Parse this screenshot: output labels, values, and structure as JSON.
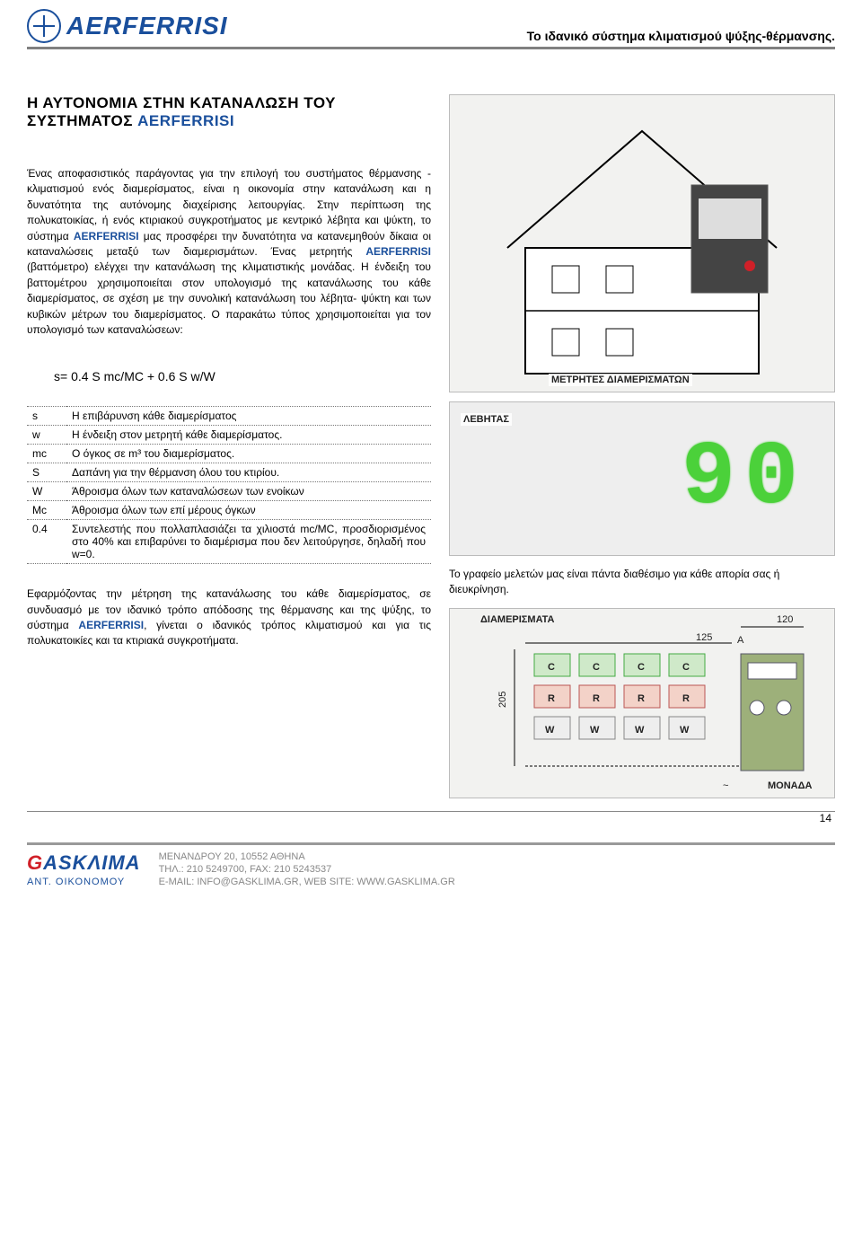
{
  "colors": {
    "brand_blue": "#1a4f9c",
    "brand_red": "#d02028",
    "led_green": "#4bd13a",
    "rule_gray": "#808080",
    "text": "#000000"
  },
  "header": {
    "logo_text": "AERFERRISI",
    "subtitle": "Το ιδανικό σύστημα κλιματισμού ψύξης-θέρμανσης."
  },
  "title_plain": "Η ΑΥΤΟΝΟΜΙΑ ΣΤΗΝ ΚΑΤΑΝΑΛΩΣΗ ΤΟΥ ΣΥΣΤΗΜΑΤΟΣ ",
  "title_brand": "AERFERRISI",
  "para1_a": "Ένας αποφασιστικός παράγοντας για την επιλογή του συστήματος θέρμανσης - κλιματισμού ενός διαμερίσματος, είναι η οικονομία στην κατανάλωση και η δυνατότητα της αυτόνομης διαχείρισης λειτουργίας.\nΣτην περίπτωση της πολυκατοικίας, ή ενός κτιριακού συγκροτήματος με κεντρικό λέβητα και ψύκτη, το σύστημα ",
  "para1_b": " μας προσφέρει την δυνατότητα να κατανεμηθούν δίκαια οι καταναλώσεις μεταξύ των διαμερισμάτων.\nΈνας μετρητής ",
  "para1_c": " (βαττόμετρο) ελέγχει την κατανάλωση της κλιματιστικής μονάδας. Η ένδειξη του βαττομέτρου χρησιμοποιείται στον υπολογισμό της κατανάλωσης του κάθε διαμερίσματος, σε σχέση με την συνολική κατανάλωση του λέβητα- ψύκτη και των κυβικών μέτρων του διαμερίσματος.\nΟ παρακάτω τύπος χρησιμοποιείται για τον υπολογισμό των καταναλώσεων:",
  "formula": "s= 0.4  S  mc/MC + 0.6  S  w/W",
  "defs": [
    {
      "sym": "s",
      "def": "Η επιβάρυνση κάθε διαμερίσματος"
    },
    {
      "sym": "w",
      "def": "Η ένδειξη στον μετρητή κάθε διαμερίσματος."
    },
    {
      "sym": "mc",
      "def": "Ο όγκος σε m³ του διαμερίσματος."
    },
    {
      "sym": "S",
      "def": "Δαπάνη για την θέρμανση όλου του κτιρίου."
    },
    {
      "sym": "W",
      "def": "Άθροισμα όλων των καταναλώσεων των ενοίκων"
    },
    {
      "sym": "Mc",
      "def": "Άθροισμα όλων των επί μέρους όγκων"
    },
    {
      "sym": "0.4",
      "def": "Συντελεστής που πολλαπλασιάζει τα χιλιοστά mc/MC, προσδιορισμένος στο 40% και επιβαρύνει το διαμέρισμα που δεν λειτούργησε, δηλαδή που w=0."
    }
  ],
  "para2_a": "Εφαρμόζοντας την μέτρηση της κατανάλωσης του κάθε διαμερίσματος, σε συνδυασμό με τον ιδανικό τρόπο απόδοσης της θέρμανσης και της ψύξης, το σύστημα ",
  "para2_b": ", γίνεται ο ιδανικός τρόπος κλιματισμού και για τις πολυκατοικίες και τα κτιριακά συγκροτήματα.",
  "right": {
    "meters_label": "ΜΕΤΡΗΤΕΣ ΔΙΑΜΕΡΙΣΜΑΤΩΝ",
    "boiler_label": "ΛΕΒΗΤΑΣ",
    "led_value": "90",
    "note": "Το γραφείο μελετών μας είναι πάντα διαθέσιμο για κάθε απορία σας ή διευκρίνηση.",
    "apart_label": "ΔΙΑΜΕΡΙΣΜΑΤΑ",
    "unit_label": "ΜΟΝΑΔΑ",
    "dim_120": "120",
    "dim_125": "125",
    "dim_205": "205",
    "col_A": "A"
  },
  "footer": {
    "logo_main_a": "G",
    "logo_main_b": "ASKΛIMA",
    "logo_sub": "ΑΝΤ. ΟΙΚΟΝΟΜΟΥ",
    "line1": "ΜΕΝΑΝΔΡΟΥ 20, 10552 ΑΘΗΝΑ",
    "line2": "ΤΗΛ.: 210 5249700, FAX: 210 5243537",
    "line3": "E-MAIL: info@gasklima.gr, WEB SITE: www.gasklima.gr"
  },
  "page_number": "14"
}
